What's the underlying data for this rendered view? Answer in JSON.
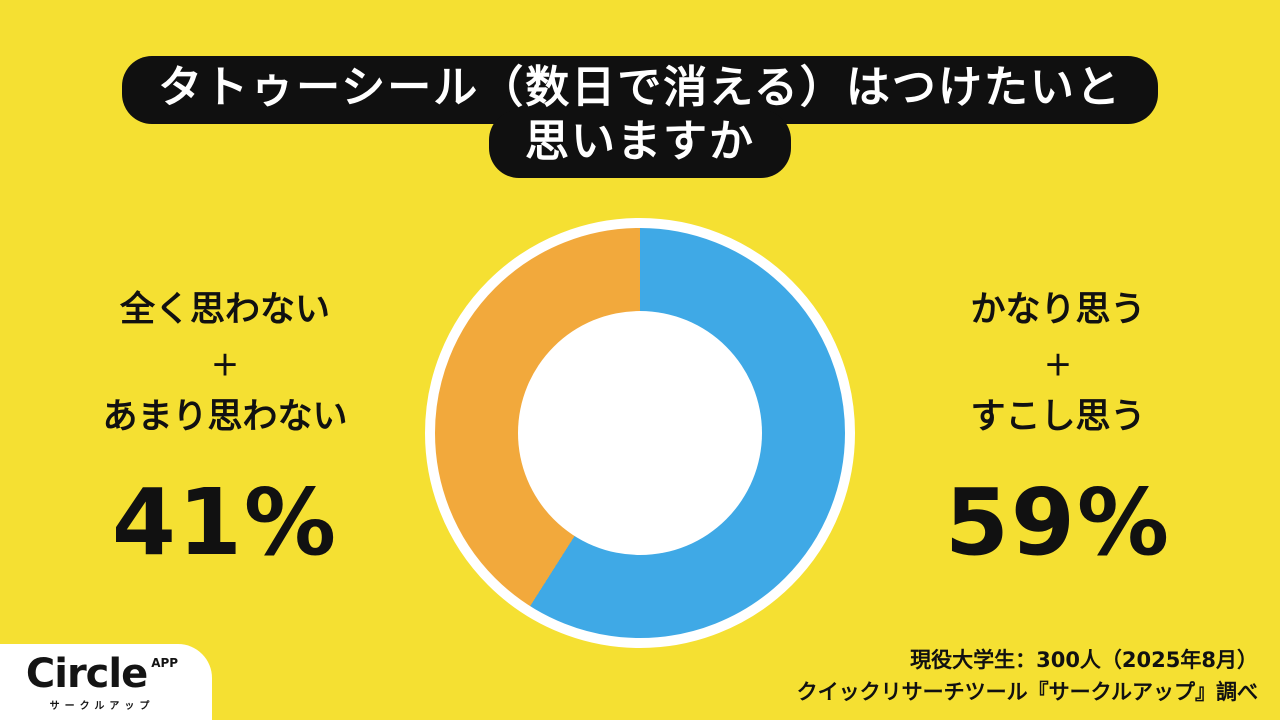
{
  "title": {
    "line1": "タトゥーシール（数日で消える）はつけたいと",
    "line2": "思いますか"
  },
  "chart_data": {
    "type": "pie",
    "donut": true,
    "title": "タトゥーシール（数日で消える）はつけたいと思いますか",
    "slices": [
      {
        "label": "かなり思う＋すこし思う",
        "value": 59,
        "color": "#3FA9E6"
      },
      {
        "label": "全く思わない＋あまり思わない",
        "value": 41,
        "color": "#F2A93C"
      }
    ],
    "start_angle_deg": 0,
    "direction": "clockwise",
    "legend_position": "none"
  },
  "left_stat": {
    "label_line1": "全く思わない",
    "plus": "＋",
    "label_line2": "あまり思わない",
    "value": "41%"
  },
  "right_stat": {
    "label_line1": "かなり思う",
    "plus": "＋",
    "label_line2": "すこし思う",
    "value": "59%"
  },
  "logo": {
    "brand": "Circle",
    "superscript": "APP",
    "subtitle": "サークルアップ"
  },
  "footer": {
    "source_line1": "現役大学生：300人（2025年8月）",
    "source_line2": "クイックリサーチツール『サークルアップ』調べ"
  },
  "colors": {
    "background": "#F5E032",
    "blue": "#3FA9E6",
    "orange": "#F2A93C",
    "title_bg": "#101010",
    "title_text": "#FFFFFF",
    "text": "#111111"
  }
}
